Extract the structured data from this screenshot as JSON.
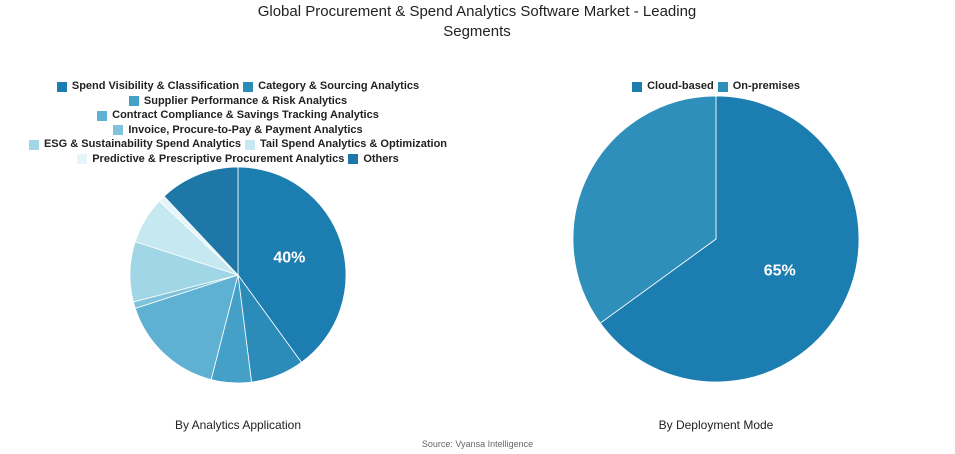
{
  "title": "Global Procurement & Spend Analytics Software Market - Leading Segments",
  "source": "Source: Vyansa Intelligence",
  "chart_data": [
    {
      "type": "pie",
      "title": "By Analytics Application",
      "categories": [
        "Spend Visibility & Classification",
        "Category & Sourcing Analytics",
        "Supplier Performance & Risk Analytics",
        "Contract Compliance & Savings Tracking Analytics",
        "Invoice, Procure-to-Pay & Payment Analytics",
        "ESG & Sustainability Spend Analytics",
        "Tail Spend Analytics & Optimization",
        "Predictive & Prescriptive Procurement Analytics",
        "Others"
      ],
      "values": [
        40,
        8,
        6,
        16,
        1,
        9,
        7,
        1,
        12
      ],
      "value_labels": [
        "40%",
        null,
        null,
        null,
        null,
        null,
        null,
        null,
        null
      ],
      "colors": [
        "#1c7eb0",
        "#2b8bb9",
        "#45a0c8",
        "#5eb1d2",
        "#7ec3db",
        "#a0d6e6",
        "#c5e8f1",
        "#e6f5f9",
        "#1f77a8"
      ]
    },
    {
      "type": "pie",
      "title": "By Deployment Mode",
      "categories": [
        "Cloud-based",
        "On-premises"
      ],
      "values": [
        65,
        35
      ],
      "value_labels": [
        "65%",
        null
      ],
      "colors": [
        "#1c7eb0",
        "#2f8fbb"
      ]
    }
  ]
}
